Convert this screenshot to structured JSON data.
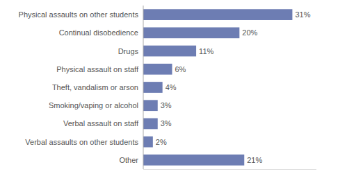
{
  "chart_data": {
    "type": "bar",
    "orientation": "horizontal",
    "categories": [
      "Physical assaults on other students",
      "Continual disobedience",
      "Drugs",
      "Physical assault on staff",
      "Theft, vandalism or arson",
      "Smoking/vaping or alcohol",
      "Verbal assault on staff",
      "Verbal assaults on other students",
      "Other"
    ],
    "values": [
      31,
      20,
      11,
      6,
      4,
      3,
      3,
      2,
      21
    ],
    "value_labels": [
      "31%",
      "20%",
      "11%",
      "6%",
      "4%",
      "3%",
      "3%",
      "2%",
      "21%"
    ],
    "color": "#6d7db3",
    "xlim": [
      0,
      36
    ],
    "data_labels": true,
    "tick_labels": "y",
    "grid": false
  }
}
